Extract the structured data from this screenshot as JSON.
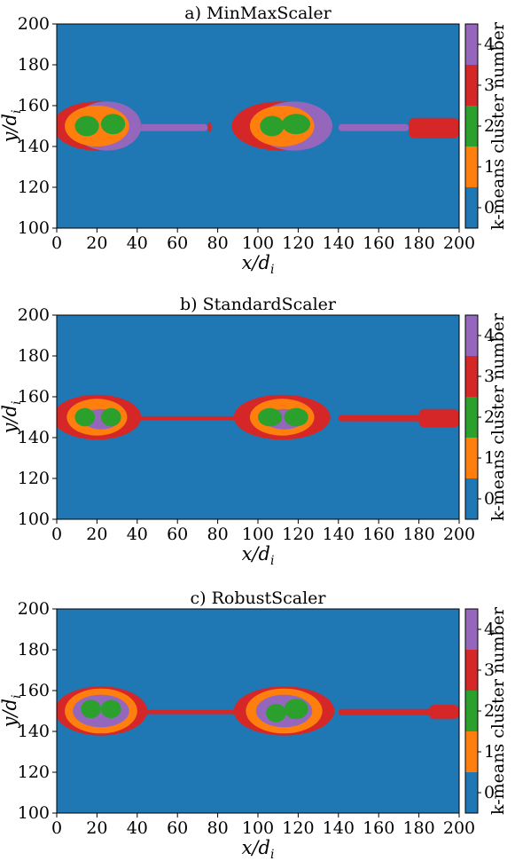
{
  "chart_data": [
    {
      "type": "heatmap",
      "title": "a) MinMaxScaler",
      "xlabel": "x/d",
      "xlabel_sub": "i",
      "ylabel": "y/d",
      "ylabel_sub": "i",
      "xlim": [
        0,
        200
      ],
      "ylim": [
        100,
        200
      ],
      "xticks": [
        "0",
        "20",
        "40",
        "60",
        "80",
        "100",
        "120",
        "140",
        "160",
        "180",
        "200"
      ],
      "yticks": [
        "100",
        "120",
        "140",
        "160",
        "180",
        "200"
      ],
      "grid": false,
      "colorbar": {
        "label": "k-means cluster number",
        "ticks": [
          "0",
          "1",
          "2",
          "3",
          "4"
        ],
        "colors": [
          "#1f77b4",
          "#ff7f0e",
          "#2ca02c",
          "#d62728",
          "#9467bd"
        ]
      },
      "regions": [
        {
          "shape": "thread",
          "cluster": 4,
          "x": [
            40,
            75
          ],
          "y": [
            147.5,
            151
          ]
        },
        {
          "shape": "thread",
          "cluster": 3,
          "x": [
            75,
            77
          ],
          "y": [
            147,
            152
          ]
        },
        {
          "shape": "thread",
          "cluster": 4,
          "x": [
            140,
            175
          ],
          "y": [
            147.5,
            151
          ]
        },
        {
          "shape": "thread",
          "cluster": 3,
          "x": [
            175,
            200
          ],
          "y": [
            144,
            154
          ]
        },
        {
          "shape": "island",
          "cluster": 3,
          "cx": 20,
          "cy": 150,
          "rx": 22,
          "ry": 12
        },
        {
          "shape": "island",
          "cluster": 4,
          "cx": 25,
          "cy": 150,
          "rx": 17,
          "ry": 12
        },
        {
          "shape": "island",
          "cluster": 1,
          "cx": 20,
          "cy": 150,
          "rx": 16,
          "ry": 10
        },
        {
          "shape": "island",
          "cluster": 2,
          "cx": 15,
          "cy": 150,
          "rx": 6,
          "ry": 5
        },
        {
          "shape": "island",
          "cluster": 2,
          "cx": 28,
          "cy": 151,
          "rx": 6,
          "ry": 5
        },
        {
          "shape": "island",
          "cluster": 3,
          "cx": 111,
          "cy": 150,
          "rx": 24,
          "ry": 12
        },
        {
          "shape": "island",
          "cluster": 4,
          "cx": 118,
          "cy": 150,
          "rx": 19,
          "ry": 12
        },
        {
          "shape": "island",
          "cluster": 1,
          "cx": 112,
          "cy": 150,
          "rx": 16,
          "ry": 10
        },
        {
          "shape": "island",
          "cluster": 2,
          "cx": 107,
          "cy": 150,
          "rx": 6,
          "ry": 5
        },
        {
          "shape": "island",
          "cluster": 2,
          "cx": 119,
          "cy": 151,
          "rx": 7,
          "ry": 5
        }
      ]
    },
    {
      "type": "heatmap",
      "title": "b) StandardScaler",
      "xlabel": "x/d",
      "xlabel_sub": "i",
      "ylabel": "y/d",
      "ylabel_sub": "i",
      "xlim": [
        0,
        200
      ],
      "ylim": [
        100,
        200
      ],
      "xticks": [
        "0",
        "20",
        "40",
        "60",
        "80",
        "100",
        "120",
        "140",
        "160",
        "180",
        "200"
      ],
      "yticks": [
        "100",
        "120",
        "140",
        "160",
        "180",
        "200"
      ],
      "grid": false,
      "colorbar": {
        "label": "k-means cluster number",
        "ticks": [
          "0",
          "1",
          "2",
          "3",
          "4"
        ],
        "colors": [
          "#1f77b4",
          "#ff7f0e",
          "#2ca02c",
          "#d62728",
          "#9467bd"
        ]
      },
      "regions": [
        {
          "shape": "thread",
          "cluster": 3,
          "x": [
            40,
            90
          ],
          "y": [
            148.5,
            150.5
          ]
        },
        {
          "shape": "thread",
          "cluster": 3,
          "x": [
            140,
            200
          ],
          "y": [
            148,
            151
          ]
        },
        {
          "shape": "thread",
          "cluster": 3,
          "x": [
            180,
            200
          ],
          "y": [
            145,
            154
          ]
        },
        {
          "shape": "island",
          "cluster": 3,
          "cx": 20,
          "cy": 150,
          "rx": 22,
          "ry": 11
        },
        {
          "shape": "island",
          "cluster": 1,
          "cx": 20,
          "cy": 150,
          "rx": 15,
          "ry": 9
        },
        {
          "shape": "island",
          "cluster": 4,
          "cx": 22,
          "cy": 149,
          "rx": 9,
          "ry": 5
        },
        {
          "shape": "island",
          "cluster": 2,
          "cx": 14,
          "cy": 150,
          "rx": 5,
          "ry": 4.5
        },
        {
          "shape": "island",
          "cluster": 2,
          "cx": 27,
          "cy": 150,
          "rx": 5,
          "ry": 4.5
        },
        {
          "shape": "island",
          "cluster": 3,
          "cx": 112,
          "cy": 150,
          "rx": 24,
          "ry": 11
        },
        {
          "shape": "island",
          "cluster": 1,
          "cx": 112,
          "cy": 150,
          "rx": 16,
          "ry": 9
        },
        {
          "shape": "island",
          "cluster": 4,
          "cx": 113,
          "cy": 149,
          "rx": 10,
          "ry": 5
        },
        {
          "shape": "island",
          "cluster": 2,
          "cx": 106,
          "cy": 150,
          "rx": 6,
          "ry": 4.5
        },
        {
          "shape": "island",
          "cluster": 2,
          "cx": 119,
          "cy": 150,
          "rx": 6,
          "ry": 4.5
        }
      ]
    },
    {
      "type": "heatmap",
      "title": "c) RobustScaler",
      "xlabel": "x/d",
      "xlabel_sub": "i",
      "ylabel": "y/d",
      "ylabel_sub": "i",
      "xlim": [
        0,
        200
      ],
      "ylim": [
        100,
        200
      ],
      "xticks": [
        "0",
        "20",
        "40",
        "60",
        "80",
        "100",
        "120",
        "140",
        "160",
        "180",
        "200"
      ],
      "yticks": [
        "100",
        "120",
        "140",
        "160",
        "180",
        "200"
      ],
      "grid": false,
      "colorbar": {
        "label": "k-means cluster number",
        "ticks": [
          "0",
          "1",
          "2",
          "3",
          "4"
        ],
        "colors": [
          "#1f77b4",
          "#ff7f0e",
          "#2ca02c",
          "#d62728",
          "#9467bd"
        ]
      },
      "regions": [
        {
          "shape": "thread",
          "cluster": 3,
          "x": [
            40,
            90
          ],
          "y": [
            148.5,
            150.5
          ]
        },
        {
          "shape": "thread",
          "cluster": 3,
          "x": [
            140,
            200
          ],
          "y": [
            148,
            151
          ]
        },
        {
          "shape": "thread",
          "cluster": 3,
          "x": [
            185,
            200
          ],
          "y": [
            146,
            153
          ]
        },
        {
          "shape": "island",
          "cluster": 3,
          "cx": 22,
          "cy": 150,
          "rx": 23,
          "ry": 12
        },
        {
          "shape": "island",
          "cluster": 1,
          "cx": 22,
          "cy": 150,
          "rx": 18,
          "ry": 11
        },
        {
          "shape": "island",
          "cluster": 4,
          "cx": 22,
          "cy": 150,
          "rx": 14,
          "ry": 8
        },
        {
          "shape": "island",
          "cluster": 2,
          "cx": 17,
          "cy": 151,
          "rx": 5,
          "ry": 4.5
        },
        {
          "shape": "island",
          "cluster": 2,
          "cx": 27,
          "cy": 151,
          "rx": 5,
          "ry": 4.5
        },
        {
          "shape": "island",
          "cluster": 3,
          "cx": 113,
          "cy": 150,
          "rx": 25,
          "ry": 12
        },
        {
          "shape": "island",
          "cluster": 1,
          "cx": 113,
          "cy": 150,
          "rx": 19,
          "ry": 11
        },
        {
          "shape": "island",
          "cluster": 4,
          "cx": 113,
          "cy": 150,
          "rx": 14,
          "ry": 8
        },
        {
          "shape": "island",
          "cluster": 2,
          "cx": 109,
          "cy": 149,
          "rx": 5,
          "ry": 4.5
        },
        {
          "shape": "island",
          "cluster": 2,
          "cx": 119,
          "cy": 151,
          "rx": 6,
          "ry": 5
        }
      ]
    }
  ]
}
